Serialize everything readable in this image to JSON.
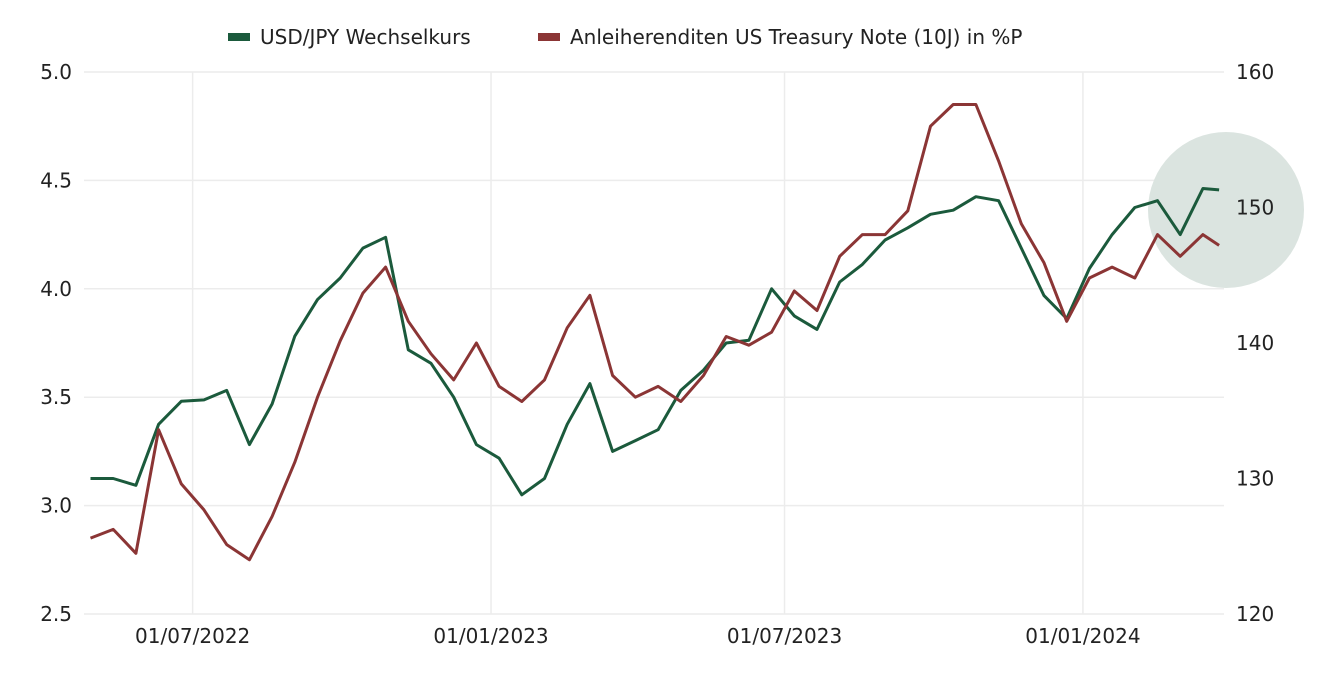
{
  "chart_data": {
    "type": "line",
    "title": "",
    "legend_position": "top",
    "grid": true,
    "x": [
      "2022-04-29",
      "2022-05-13",
      "2022-05-27",
      "2022-06-10",
      "2022-06-24",
      "2022-07-08",
      "2022-07-22",
      "2022-08-05",
      "2022-08-19",
      "2022-09-02",
      "2022-09-16",
      "2022-09-30",
      "2022-10-14",
      "2022-10-28",
      "2022-11-11",
      "2022-11-25",
      "2022-12-09",
      "2022-12-23",
      "2023-01-06",
      "2023-01-20",
      "2023-02-03",
      "2023-02-17",
      "2023-03-03",
      "2023-03-17",
      "2023-03-31",
      "2023-04-14",
      "2023-04-28",
      "2023-05-12",
      "2023-05-26",
      "2023-06-09",
      "2023-06-23",
      "2023-07-07",
      "2023-07-21",
      "2023-08-04",
      "2023-08-18",
      "2023-09-01",
      "2023-09-15",
      "2023-09-29",
      "2023-10-13",
      "2023-10-27",
      "2023-11-10",
      "2023-11-24",
      "2023-12-08",
      "2023-12-22",
      "2024-01-05",
      "2024-01-19",
      "2024-02-02",
      "2024-02-16",
      "2024-03-01",
      "2024-03-15",
      "2024-03-25"
    ],
    "xlim": [
      "2022-04-25",
      "2024-03-28"
    ],
    "x_ticks": [
      {
        "date": "2022-07-01",
        "label": "01/07/2022"
      },
      {
        "date": "2023-01-01",
        "label": "01/01/2023"
      },
      {
        "date": "2023-07-01",
        "label": "01/07/2023"
      },
      {
        "date": "2024-01-01",
        "label": "01/01/2024"
      }
    ],
    "y_left": {
      "lim": [
        2.5,
        5.0
      ],
      "ticks": [
        "2.5",
        "3.0",
        "3.5",
        "4.0",
        "4.5",
        "5.0"
      ]
    },
    "y_right": {
      "lim": [
        120,
        160
      ],
      "ticks": [
        "120",
        "130",
        "140",
        "150",
        "160"
      ]
    },
    "series": [
      {
        "name": "USD/JPY Wechselkurs",
        "axis": "right",
        "color": "#1b5a3c",
        "values": [
          130.0,
          130.0,
          129.5,
          134.0,
          135.7,
          135.8,
          136.5,
          132.5,
          135.5,
          140.5,
          143.2,
          144.8,
          147.0,
          147.8,
          139.5,
          138.5,
          136.0,
          132.5,
          131.5,
          128.8,
          130.0,
          134.0,
          137.0,
          132.0,
          132.8,
          133.6,
          136.5,
          138.0,
          140.0,
          140.2,
          144.0,
          142.0,
          141.0,
          144.5,
          145.8,
          147.6,
          148.5,
          149.5,
          149.8,
          150.8,
          150.5,
          147.0,
          143.5,
          141.8,
          145.5,
          148.0,
          150.0,
          150.5,
          148.0,
          151.4,
          151.3
        ]
      },
      {
        "name": "Anleiherenditen US Treasury Note (10J) in %P",
        "axis": "left",
        "color": "#8b3535",
        "values": [
          2.85,
          2.89,
          2.78,
          3.35,
          3.1,
          2.98,
          2.82,
          2.75,
          2.95,
          3.2,
          3.5,
          3.76,
          3.98,
          4.1,
          3.85,
          3.7,
          3.58,
          3.75,
          3.55,
          3.48,
          3.58,
          3.82,
          3.97,
          3.6,
          3.5,
          3.55,
          3.48,
          3.6,
          3.78,
          3.74,
          3.8,
          3.99,
          3.9,
          4.15,
          4.25,
          4.25,
          4.36,
          4.75,
          4.85,
          4.85,
          4.59,
          4.3,
          4.12,
          3.85,
          4.05,
          4.1,
          4.05,
          4.25,
          4.15,
          4.25,
          4.2
        ]
      }
    ],
    "highlight_color": "#dbe4e0"
  }
}
